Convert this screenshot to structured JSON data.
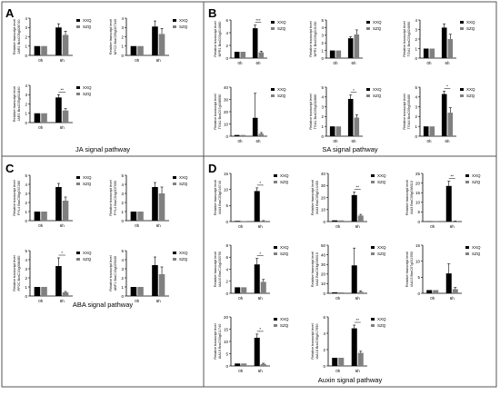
{
  "colors": {
    "xxq": "#000000",
    "szq": "#808080",
    "axis": "#000000",
    "border": "#555555"
  },
  "panels": [
    {
      "letter": "A",
      "title": "JA signal pathway"
    },
    {
      "letter": "B",
      "title": "SA signal pathway"
    },
    {
      "letter": "C",
      "title": "ABA signal pathway"
    },
    {
      "letter": "D",
      "title": "Auxin signal pathway"
    }
  ],
  "legend": [
    "XXQ",
    "SZQ"
  ],
  "chart_data": [
    {
      "panel": "A",
      "type": "bar",
      "categories": [
        "0h",
        "6h"
      ],
      "ylabel": "Relative transcript level\nJAR1 BraC05g028740",
      "ylim": [
        0,
        4
      ],
      "yticks": [
        0,
        1,
        2,
        3,
        4
      ],
      "series": [
        {
          "name": "XXQ",
          "values": [
            1.0,
            3.0
          ],
          "errors": [
            0,
            0.4
          ]
        },
        {
          "name": "SZQ",
          "values": [
            1.0,
            2.2
          ],
          "errors": [
            0,
            0.4
          ]
        }
      ],
      "sig": ""
    },
    {
      "panel": "A",
      "type": "bar",
      "categories": [
        "0h",
        "6h"
      ],
      "ylabel": "Relative transcript level\nMYC2 BraC05g027340",
      "ylim": [
        0,
        4
      ],
      "yticks": [
        0,
        1,
        2,
        3,
        4
      ],
      "series": [
        {
          "name": "XXQ",
          "values": [
            1.0,
            3.1
          ],
          "errors": [
            0,
            0.6
          ]
        },
        {
          "name": "SZQ",
          "values": [
            1.0,
            2.3
          ],
          "errors": [
            0,
            0.6
          ]
        }
      ],
      "sig": ""
    },
    {
      "panel": "A",
      "type": "bar",
      "categories": [
        "0h",
        "6h"
      ],
      "ylabel": "Relative transcript level\nJAR1 BraC05g031840",
      "ylim": [
        0,
        4
      ],
      "yticks": [
        0,
        1,
        2,
        3,
        4
      ],
      "series": [
        {
          "name": "XXQ",
          "values": [
            1.0,
            2.7
          ],
          "errors": [
            0,
            0.3
          ]
        },
        {
          "name": "SZQ",
          "values": [
            1.0,
            1.3
          ],
          "errors": [
            0,
            0.2
          ]
        }
      ],
      "sig": "**"
    },
    {
      "panel": "B",
      "type": "bar",
      "categories": [
        "0h",
        "6h"
      ],
      "ylabel": "Relative transcript level\nNPR1 BraC03g014680",
      "ylim": [
        0,
        6
      ],
      "yticks": [
        0,
        2,
        4,
        6
      ],
      "series": [
        {
          "name": "XXQ",
          "values": [
            1.0,
            4.7
          ],
          "errors": [
            0,
            0.5
          ]
        },
        {
          "name": "SZQ",
          "values": [
            1.0,
            0.9
          ],
          "errors": [
            0,
            0.2
          ]
        }
      ],
      "sig": "***"
    },
    {
      "panel": "B",
      "type": "bar",
      "categories": [
        "0h",
        "6h"
      ],
      "ylabel": "Relative transcript level\nNPR1 BraC09g015150",
      "ylim": [
        0,
        5
      ],
      "yticks": [
        0,
        1,
        2,
        3,
        4,
        5
      ],
      "series": [
        {
          "name": "XXQ",
          "values": [
            1.0,
            2.6
          ],
          "errors": [
            0,
            0.2
          ]
        },
        {
          "name": "SZQ",
          "values": [
            1.0,
            3.1
          ],
          "errors": [
            0,
            0.6
          ]
        }
      ],
      "sig": ""
    },
    {
      "panel": "B",
      "type": "bar",
      "categories": [
        "0h",
        "6h"
      ],
      "ylabel": "Relative transcript level\nTGA1 BraC03g024690",
      "ylim": [
        0,
        4
      ],
      "yticks": [
        0,
        1,
        2,
        3,
        4
      ],
      "series": [
        {
          "name": "XXQ",
          "values": [
            1.0,
            3.2
          ],
          "errors": [
            0,
            0.4
          ]
        },
        {
          "name": "SZQ",
          "values": [
            1.0,
            2.0
          ],
          "errors": [
            0,
            0.5
          ]
        }
      ],
      "sig": ""
    },
    {
      "panel": "B",
      "type": "bar",
      "categories": [
        "0h",
        "6h"
      ],
      "ylabel": "Relative transcript level\nTGA1 BraC07g038590",
      "ylim": [
        0,
        40
      ],
      "yticks": [
        0,
        10,
        20,
        30,
        40
      ],
      "series": [
        {
          "name": "XXQ",
          "values": [
            1.0,
            15.0
          ],
          "errors": [
            0,
            20.0
          ]
        },
        {
          "name": "SZQ",
          "values": [
            1.0,
            2.0
          ],
          "errors": [
            0,
            1.0
          ]
        }
      ],
      "sig": ""
    },
    {
      "panel": "B",
      "type": "bar",
      "categories": [
        "0h",
        "6h"
      ],
      "ylabel": "Relative transcript level\nTGA1 BraC09g032860",
      "ylim": [
        0,
        5
      ],
      "yticks": [
        0,
        1,
        2,
        3,
        4,
        5
      ],
      "series": [
        {
          "name": "XXQ",
          "values": [
            1.0,
            3.8
          ],
          "errors": [
            0,
            0.4
          ]
        },
        {
          "name": "SZQ",
          "values": [
            1.0,
            1.9
          ],
          "errors": [
            0,
            0.3
          ]
        }
      ],
      "sig": "*"
    },
    {
      "panel": "B",
      "type": "bar",
      "categories": [
        "0h",
        "6h"
      ],
      "ylabel": "Relative transcript level\nTGA4 BraC09g035460",
      "ylim": [
        0,
        5
      ],
      "yticks": [
        0,
        1,
        2,
        3,
        4,
        5
      ],
      "series": [
        {
          "name": "XXQ",
          "values": [
            1.0,
            4.3
          ],
          "errors": [
            0,
            0.3
          ]
        },
        {
          "name": "SZQ",
          "values": [
            1.0,
            2.4
          ],
          "errors": [
            0,
            0.5
          ]
        }
      ],
      "sig": "*"
    },
    {
      "panel": "C",
      "type": "bar",
      "categories": [
        "0h",
        "6h"
      ],
      "ylabel": "Relative transcript level\nPYL4 BraC06g037280",
      "ylim": [
        0,
        5
      ],
      "yticks": [
        0,
        1,
        2,
        3,
        4,
        5
      ],
      "series": [
        {
          "name": "XXQ",
          "values": [
            1.0,
            3.7
          ],
          "errors": [
            0,
            0.4
          ]
        },
        {
          "name": "SZQ",
          "values": [
            1.0,
            2.2
          ],
          "errors": [
            0,
            0.4
          ]
        }
      ],
      "sig": ""
    },
    {
      "panel": "C",
      "type": "bar",
      "categories": [
        "0h",
        "6h"
      ],
      "ylabel": "Relative transcript level\nPYL4 BraC04g007590",
      "ylim": [
        0,
        5
      ],
      "yticks": [
        0,
        1,
        2,
        3,
        4,
        5
      ],
      "series": [
        {
          "name": "XXQ",
          "values": [
            1.0,
            3.7
          ],
          "errors": [
            0,
            0.5
          ]
        },
        {
          "name": "SZQ",
          "values": [
            1.0,
            3.0
          ],
          "errors": [
            0,
            0.7
          ]
        }
      ],
      "sig": ""
    },
    {
      "panel": "C",
      "type": "bar",
      "categories": [
        "0h",
        "6h"
      ],
      "ylabel": "Relative transcript level\nPP2C BraC10g008480",
      "ylim": [
        0,
        5
      ],
      "yticks": [
        0,
        1,
        2,
        3,
        4,
        5
      ],
      "series": [
        {
          "name": "XXQ",
          "values": [
            1.0,
            3.3
          ],
          "errors": [
            0,
            0.9
          ]
        },
        {
          "name": "SZQ",
          "values": [
            1.0,
            0.4
          ],
          "errors": [
            0,
            0.1
          ]
        }
      ],
      "sig": "*"
    },
    {
      "panel": "C",
      "type": "bar",
      "categories": [
        "0h",
        "6h"
      ],
      "ylabel": "Relative transcript level\nABF1 BraC10g025030",
      "ylim": [
        0,
        5
      ],
      "yticks": [
        0,
        1,
        2,
        3,
        4,
        5
      ],
      "series": [
        {
          "name": "XXQ",
          "values": [
            1.0,
            3.4
          ],
          "errors": [
            0,
            0.9
          ]
        },
        {
          "name": "SZQ",
          "values": [
            1.0,
            2.4
          ],
          "errors": [
            0,
            0.8
          ]
        }
      ],
      "sig": ""
    },
    {
      "panel": "D",
      "type": "bar",
      "categories": [
        "0h",
        "6h"
      ],
      "ylabel": "Relative transcript level\nIAA3 BraC03g016740",
      "ylim": [
        0,
        15
      ],
      "yticks": [
        0,
        5,
        10,
        15
      ],
      "series": [
        {
          "name": "XXQ",
          "values": [
            0.2,
            9.5
          ],
          "errors": [
            0,
            1.0
          ]
        },
        {
          "name": "SZQ",
          "values": [
            0.1,
            0.2
          ],
          "errors": [
            0,
            0.1
          ]
        }
      ],
      "sig": "*"
    },
    {
      "panel": "D",
      "type": "bar",
      "categories": [
        "0h",
        "6h"
      ],
      "ylabel": "Relative transcript level\nIAA3 BraC05g014450",
      "ylim": [
        0,
        40
      ],
      "yticks": [
        0,
        10,
        20,
        30,
        40
      ],
      "series": [
        {
          "name": "XXQ",
          "values": [
            1.0,
            22.0
          ],
          "errors": [
            0,
            2.5
          ]
        },
        {
          "name": "SZQ",
          "values": [
            1.0,
            5.0
          ],
          "errors": [
            0,
            1.0
          ]
        }
      ],
      "sig": "**"
    },
    {
      "panel": "D",
      "type": "bar",
      "categories": [
        "0h",
        "6h"
      ],
      "ylabel": "Relative transcript level\nIAA3 BraC09g038310",
      "ylim": [
        0,
        25
      ],
      "yticks": [
        0,
        5,
        10,
        15,
        20,
        25
      ],
      "series": [
        {
          "name": "XXQ",
          "values": [
            0.1,
            18.5
          ],
          "errors": [
            0,
            2.5
          ]
        },
        {
          "name": "SZQ",
          "values": [
            0.1,
            0.2
          ],
          "errors": [
            0,
            0.1
          ]
        }
      ],
      "sig": "**"
    },
    {
      "panel": "D",
      "type": "bar",
      "categories": [
        "0h",
        "6h"
      ],
      "ylabel": "Relative transcript level\nIAA10 BraC10g030790",
      "ylim": [
        0,
        8
      ],
      "yticks": [
        0,
        2,
        4,
        6,
        8
      ],
      "series": [
        {
          "name": "XXQ",
          "values": [
            1.0,
            4.8
          ],
          "errors": [
            0,
            1.0
          ]
        },
        {
          "name": "SZQ",
          "values": [
            1.0,
            1.9
          ],
          "errors": [
            0,
            0.4
          ]
        }
      ],
      "sig": "*"
    },
    {
      "panel": "D",
      "type": "bar",
      "categories": [
        "0h",
        "6h"
      ],
      "ylabel": "Relative transcript level\nIAA2 BraC03g036010",
      "ylim": [
        0,
        50
      ],
      "yticks": [
        0,
        10,
        20,
        30,
        40,
        50
      ],
      "series": [
        {
          "name": "XXQ",
          "values": [
            1.0,
            29.0
          ],
          "errors": [
            0,
            18.0
          ]
        },
        {
          "name": "SZQ",
          "values": [
            1.0,
            1.5
          ],
          "errors": [
            0,
            1.0
          ]
        }
      ],
      "sig": ""
    },
    {
      "panel": "D",
      "type": "bar",
      "categories": [
        "0h",
        "6h"
      ],
      "ylabel": "Relative transcript level\nIAA13 BraC07g011950",
      "ylim": [
        0,
        15
      ],
      "yticks": [
        0,
        5,
        10,
        15
      ],
      "series": [
        {
          "name": "XXQ",
          "values": [
            1.0,
            6.2
          ],
          "errors": [
            0,
            3.0
          ]
        },
        {
          "name": "SZQ",
          "values": [
            1.0,
            1.3
          ],
          "errors": [
            0,
            0.5
          ]
        }
      ],
      "sig": ""
    },
    {
      "panel": "D",
      "type": "bar",
      "categories": [
        "0h",
        "6h"
      ],
      "ylabel": "Relative transcript level\nIAA19 BraC03g011740",
      "ylim": [
        0,
        20
      ],
      "yticks": [
        0,
        5,
        10,
        15,
        20
      ],
      "series": [
        {
          "name": "XXQ",
          "values": [
            1.0,
            11.5
          ],
          "errors": [
            0,
            1.5
          ]
        },
        {
          "name": "SZQ",
          "values": [
            1.0,
            0.8
          ],
          "errors": [
            0,
            0.3
          ]
        }
      ],
      "sig": "*"
    },
    {
      "panel": "D",
      "type": "bar",
      "categories": [
        "0h",
        "6h"
      ],
      "ylabel": "Relative transcript level\nIAA16 BraC06g017990",
      "ylim": [
        0,
        6
      ],
      "yticks": [
        0,
        2,
        4,
        6
      ],
      "series": [
        {
          "name": "XXQ",
          "values": [
            1.0,
            4.6
          ],
          "errors": [
            0,
            0.4
          ]
        },
        {
          "name": "SZQ",
          "values": [
            1.0,
            1.6
          ],
          "errors": [
            0,
            0.2
          ]
        }
      ],
      "sig": "**"
    }
  ]
}
